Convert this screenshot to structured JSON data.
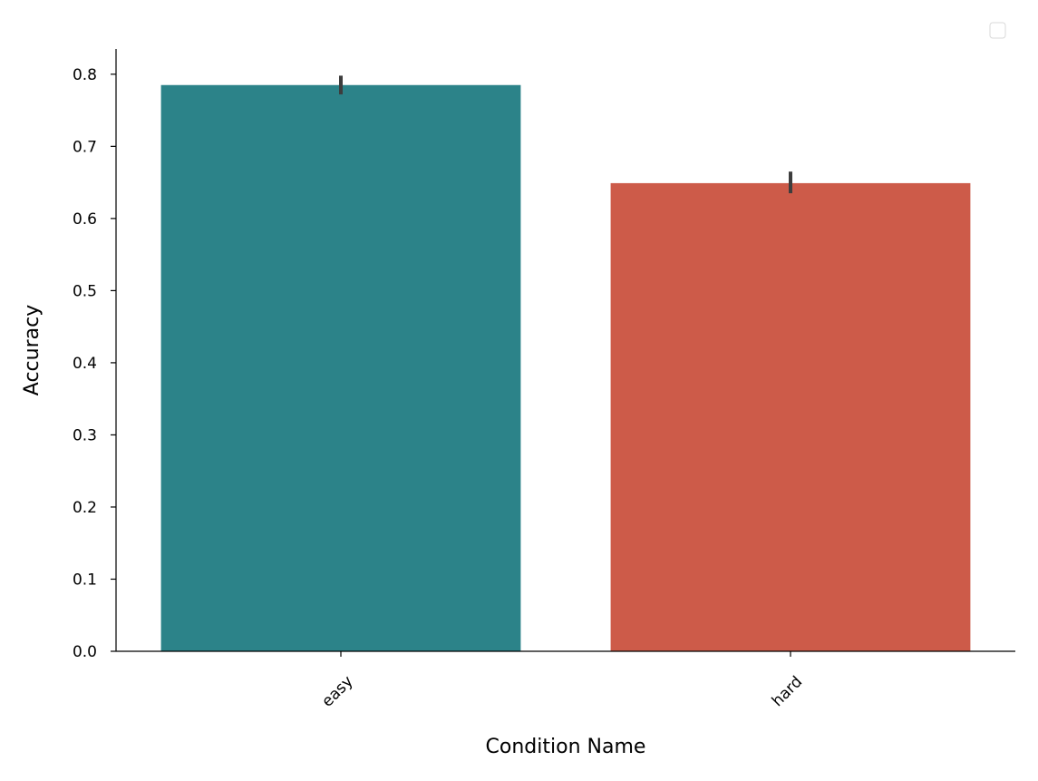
{
  "chart_data": {
    "type": "bar",
    "categories": [
      "easy",
      "hard"
    ],
    "values": [
      0.785,
      0.649
    ],
    "error_bars": [
      [
        0.772,
        0.798
      ],
      [
        0.635,
        0.665
      ]
    ],
    "title": "",
    "xlabel": "Condition Name",
    "ylabel": "Accuracy",
    "ylim": [
      0,
      0.835
    ],
    "yticks": [
      "0.0",
      "0.1",
      "0.2",
      "0.3",
      "0.4",
      "0.5",
      "0.6",
      "0.7",
      "0.8"
    ],
    "grid": false,
    "legend": "top-right",
    "colors": [
      "#2c8389",
      "#cd5b49"
    ],
    "error_color": "#3d3d3d"
  }
}
